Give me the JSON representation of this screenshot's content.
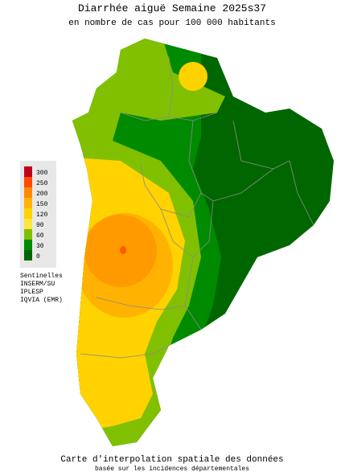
{
  "header": {
    "title": "Diarrhée aiguë Semaine 2025s37",
    "subtitle": "en nombre de cas pour 100 000 habitants"
  },
  "legend": {
    "items": [
      {
        "value": 300,
        "color": "#c0001c"
      },
      {
        "value": 250,
        "color": "#ff4a00"
      },
      {
        "value": 200,
        "color": "#ff8a00"
      },
      {
        "value": 150,
        "color": "#ffb300"
      },
      {
        "value": 120,
        "color": "#ffd200"
      },
      {
        "value": 90,
        "color": "#ffe640"
      },
      {
        "value": 60,
        "color": "#80c000"
      },
      {
        "value": 30,
        "color": "#008a00"
      },
      {
        "value": 0,
        "color": "#006600"
      }
    ]
  },
  "sources": [
    "Sentinelles",
    "INSERM/SU",
    "IPLESP",
    "IQVIA (EMR)"
  ],
  "footer": {
    "title": "Carte d'interpolation spatiale des données",
    "subtitle": "basée sur les incidences départementales"
  }
}
